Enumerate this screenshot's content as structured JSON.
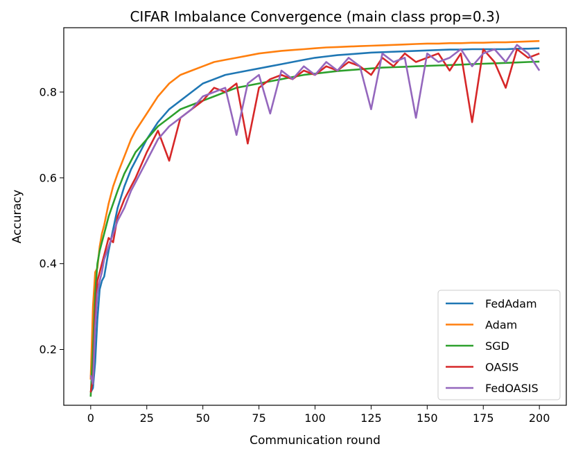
{
  "chart_data": {
    "type": "line",
    "title": "CIFAR Imbalance Convergence (main class prop=0.3)",
    "xlabel": "Communication round",
    "ylabel": "Accuracy",
    "xlim": [
      -12,
      212
    ],
    "ylim": [
      0.07,
      0.95
    ],
    "xticks": [
      0,
      25,
      50,
      75,
      100,
      125,
      150,
      175,
      200
    ],
    "yticks": [
      0.2,
      0.4,
      0.6,
      0.8
    ],
    "ytick_labels": [
      "0.2",
      "0.4",
      "0.6",
      "0.8"
    ],
    "grid": false,
    "legend_position": "lower right",
    "x": [
      0,
      1,
      2,
      3,
      4,
      5,
      6,
      8,
      10,
      12,
      15,
      18,
      20,
      25,
      30,
      35,
      40,
      45,
      50,
      55,
      60,
      65,
      70,
      75,
      80,
      85,
      90,
      95,
      100,
      105,
      110,
      115,
      120,
      125,
      130,
      135,
      140,
      145,
      150,
      155,
      160,
      165,
      170,
      175,
      180,
      185,
      190,
      195,
      200
    ],
    "series": [
      {
        "name": "FedAdam",
        "color": "#1f77b4",
        "values": [
          0.1,
          0.11,
          0.17,
          0.27,
          0.34,
          0.36,
          0.37,
          0.43,
          0.48,
          0.53,
          0.58,
          0.62,
          0.64,
          0.69,
          0.73,
          0.76,
          0.78,
          0.8,
          0.82,
          0.83,
          0.84,
          0.845,
          0.85,
          0.855,
          0.86,
          0.865,
          0.87,
          0.875,
          0.88,
          0.883,
          0.886,
          0.888,
          0.89,
          0.892,
          0.893,
          0.894,
          0.895,
          0.896,
          0.897,
          0.898,
          0.899,
          0.899,
          0.9,
          0.9,
          0.9,
          0.9,
          0.901,
          0.901,
          0.902
        ]
      },
      {
        "name": "Adam",
        "color": "#ff7f0e",
        "values": [
          0.13,
          0.3,
          0.38,
          0.39,
          0.44,
          0.47,
          0.49,
          0.54,
          0.58,
          0.61,
          0.65,
          0.69,
          0.71,
          0.75,
          0.79,
          0.82,
          0.84,
          0.85,
          0.86,
          0.87,
          0.875,
          0.88,
          0.885,
          0.89,
          0.893,
          0.896,
          0.898,
          0.9,
          0.902,
          0.904,
          0.905,
          0.906,
          0.907,
          0.908,
          0.909,
          0.91,
          0.911,
          0.912,
          0.913,
          0.913,
          0.914,
          0.914,
          0.915,
          0.915,
          0.916,
          0.916,
          0.917,
          0.918,
          0.919
        ]
      },
      {
        "name": "SGD",
        "color": "#2ca02c",
        "values": [
          0.09,
          0.2,
          0.33,
          0.4,
          0.43,
          0.45,
          0.47,
          0.51,
          0.54,
          0.57,
          0.61,
          0.64,
          0.66,
          0.69,
          0.72,
          0.74,
          0.76,
          0.77,
          0.78,
          0.79,
          0.8,
          0.81,
          0.815,
          0.82,
          0.825,
          0.83,
          0.835,
          0.84,
          0.843,
          0.846,
          0.849,
          0.851,
          0.853,
          0.855,
          0.857,
          0.858,
          0.859,
          0.86,
          0.861,
          0.862,
          0.863,
          0.864,
          0.865,
          0.866,
          0.867,
          0.868,
          0.869,
          0.87,
          0.871
        ]
      },
      {
        "name": "OASIS",
        "color": "#d62728",
        "values": [
          0.1,
          0.13,
          0.28,
          0.36,
          0.38,
          0.4,
          0.42,
          0.46,
          0.45,
          0.51,
          0.55,
          0.58,
          0.6,
          0.66,
          0.71,
          0.64,
          0.74,
          0.76,
          0.78,
          0.81,
          0.8,
          0.82,
          0.68,
          0.81,
          0.83,
          0.84,
          0.83,
          0.85,
          0.84,
          0.86,
          0.85,
          0.87,
          0.86,
          0.84,
          0.88,
          0.86,
          0.89,
          0.87,
          0.88,
          0.89,
          0.85,
          0.89,
          0.73,
          0.9,
          0.87,
          0.81,
          0.9,
          0.88,
          0.89
        ]
      },
      {
        "name": "FedOASIS",
        "color": "#9467bd",
        "values": [
          0.14,
          0.12,
          0.25,
          0.33,
          0.36,
          0.38,
          0.41,
          0.44,
          0.47,
          0.5,
          0.53,
          0.57,
          0.59,
          0.64,
          0.69,
          0.72,
          0.74,
          0.76,
          0.79,
          0.8,
          0.81,
          0.7,
          0.82,
          0.84,
          0.75,
          0.85,
          0.83,
          0.86,
          0.84,
          0.87,
          0.85,
          0.88,
          0.86,
          0.76,
          0.89,
          0.87,
          0.88,
          0.74,
          0.89,
          0.87,
          0.88,
          0.9,
          0.86,
          0.89,
          0.9,
          0.87,
          0.91,
          0.89,
          0.85
        ]
      }
    ]
  }
}
